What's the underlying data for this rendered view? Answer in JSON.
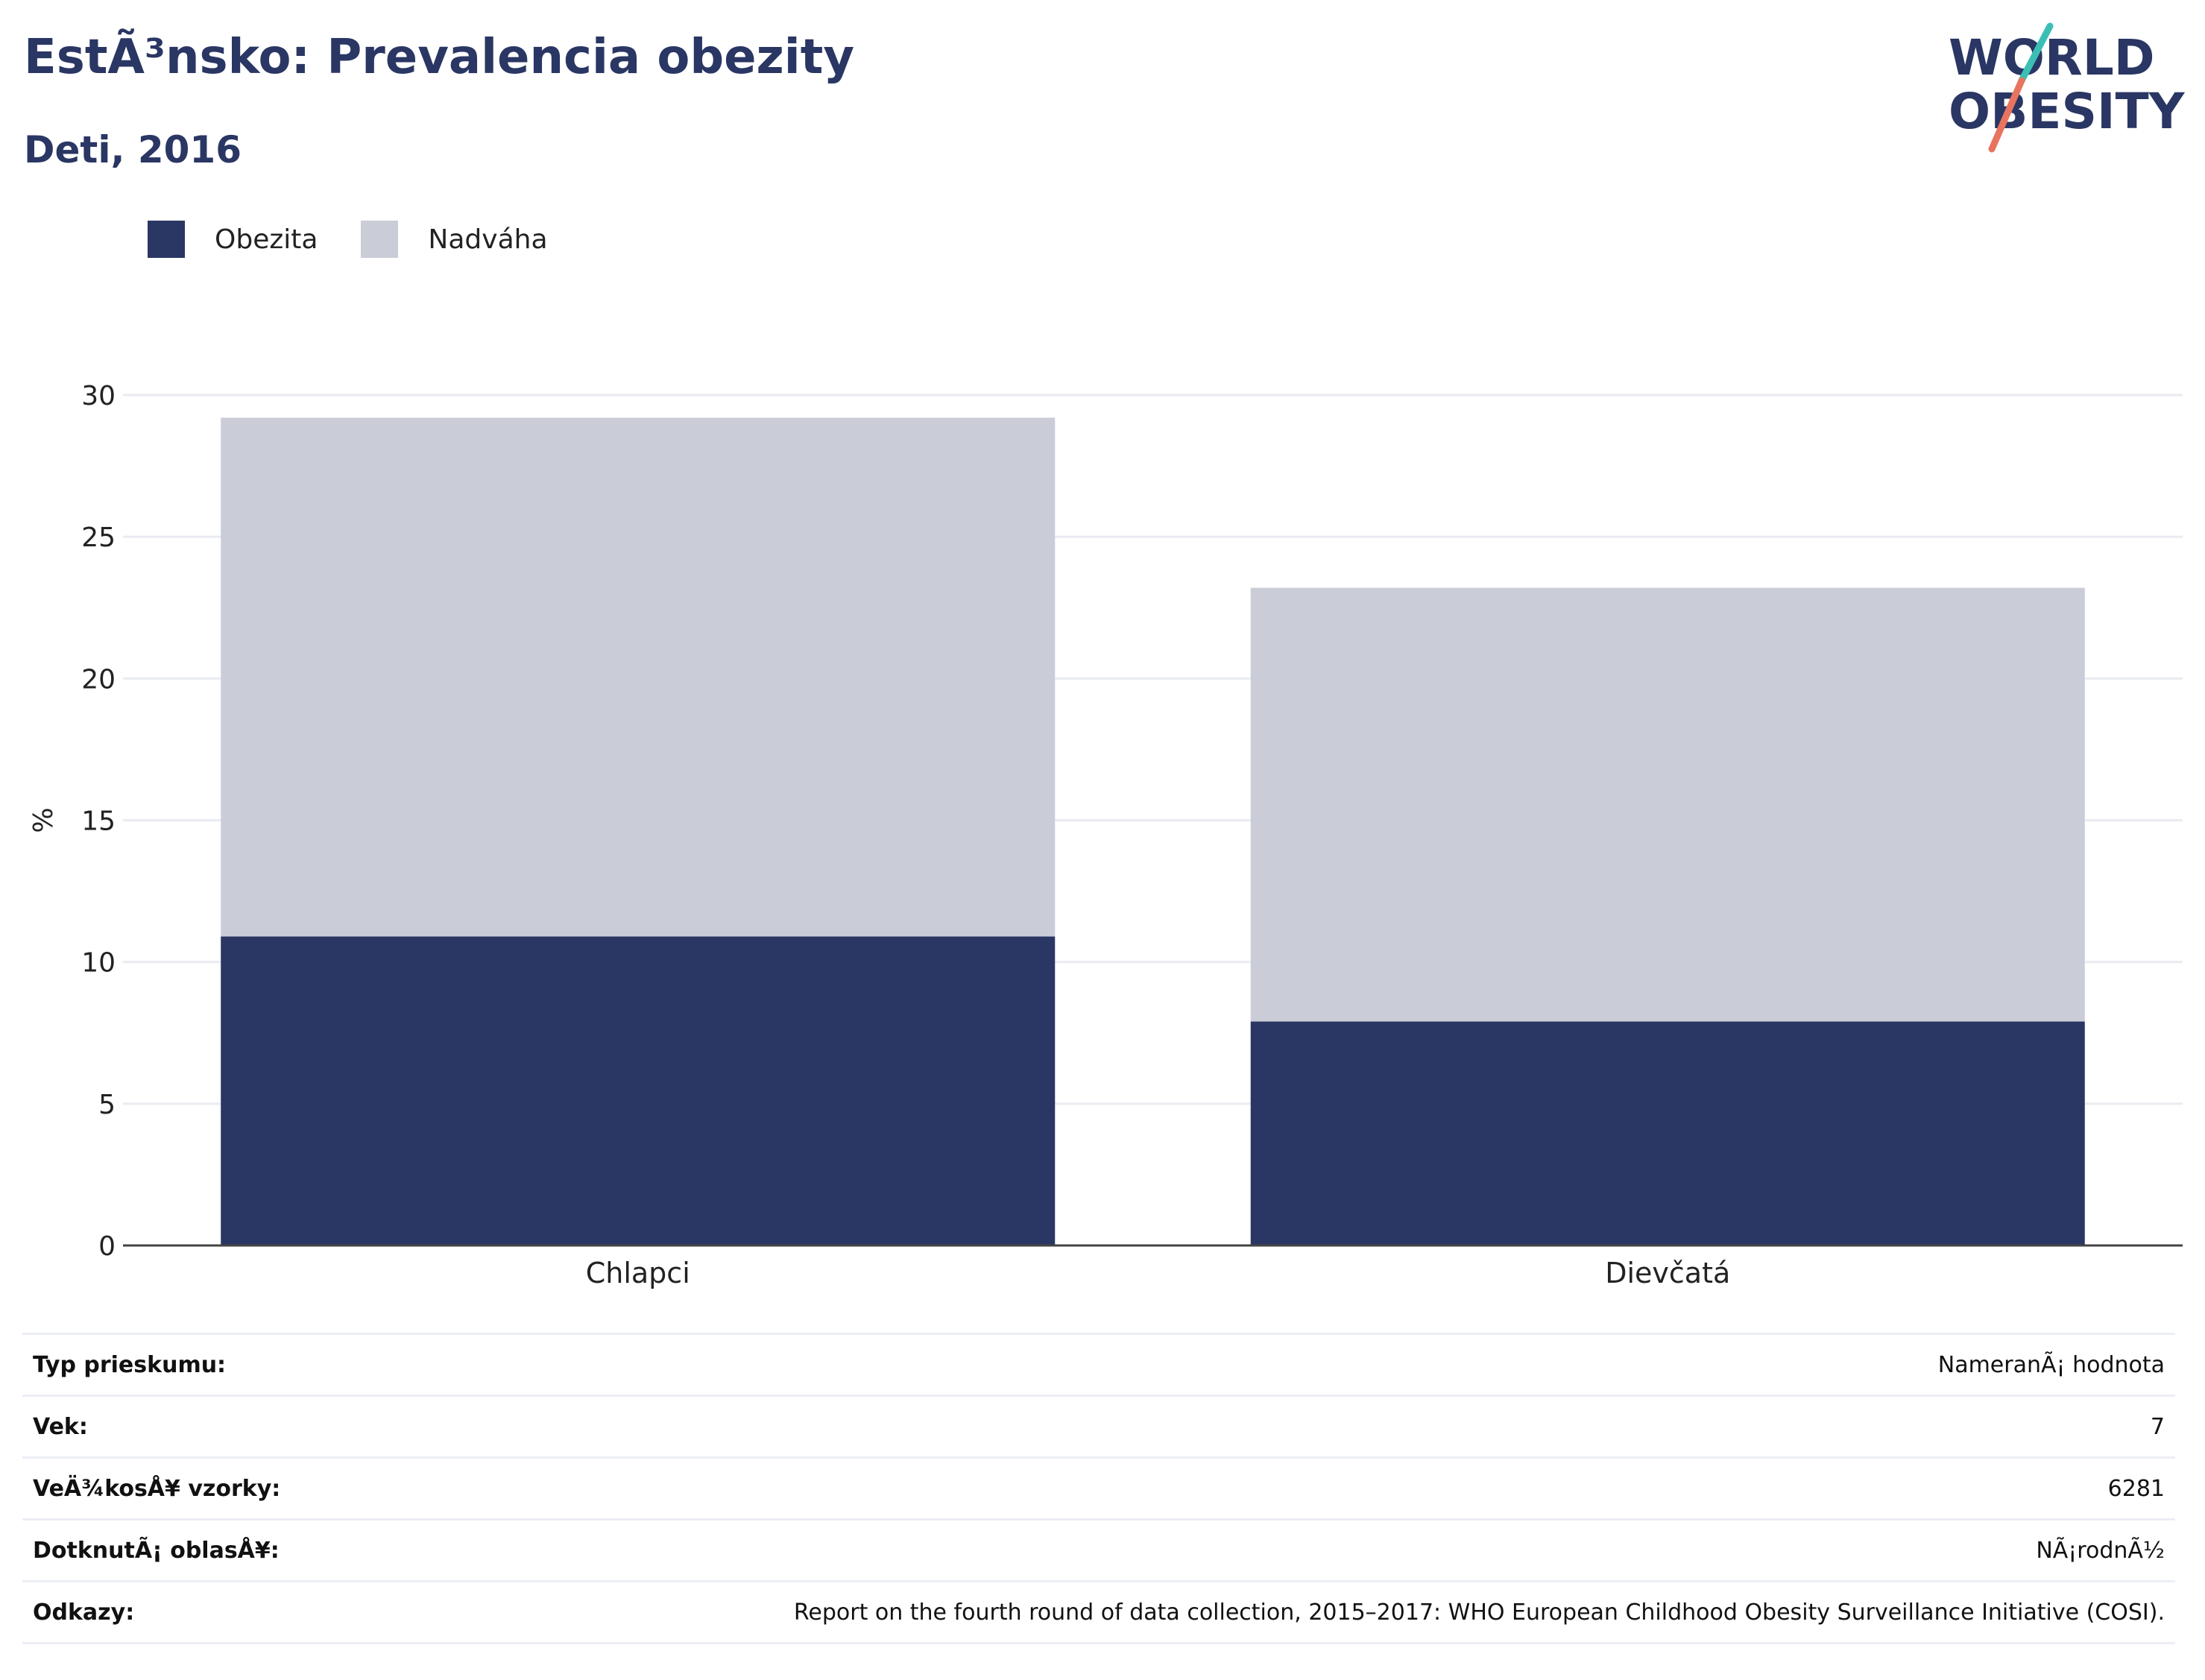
{
  "header": {
    "title": "EstÃ³nsko: Prevalencia obezity",
    "subtitle": "Deti, 2016"
  },
  "logo": {
    "line1": "WORLD",
    "line2": "OBESITY"
  },
  "chart_data": {
    "type": "bar",
    "stacked": true,
    "categories": [
      "Chlapci",
      "Dievčatá"
    ],
    "series": [
      {
        "name": "Obezita",
        "values": [
          10.9,
          7.9
        ],
        "color": "#2a3663"
      },
      {
        "name": "Nadváha",
        "values": [
          18.3,
          15.3
        ],
        "color": "#cacdd8"
      }
    ],
    "ylabel": "%",
    "ylim": [
      0,
      30
    ],
    "yticks": [
      0,
      5,
      10,
      15,
      20,
      25,
      30
    ],
    "grid": true,
    "legend_position": "top-left"
  },
  "info": [
    {
      "key": "Typ prieskumu:",
      "value": "NameranÃ¡ hodnota"
    },
    {
      "key": "Vek:",
      "value": "7"
    },
    {
      "key": "VeÄ¾kosÅ¥ vzorky:",
      "value": "6281"
    },
    {
      "key": "DotknutÃ¡ oblasÅ¥:",
      "value": "NÃ¡rodnÃ½"
    },
    {
      "key": "Odkazy:",
      "value": "Report on the fourth round of data collection, 2015–2017: WHO European Childhood Obesity Surveillance Initiative (COSI)."
    }
  ]
}
